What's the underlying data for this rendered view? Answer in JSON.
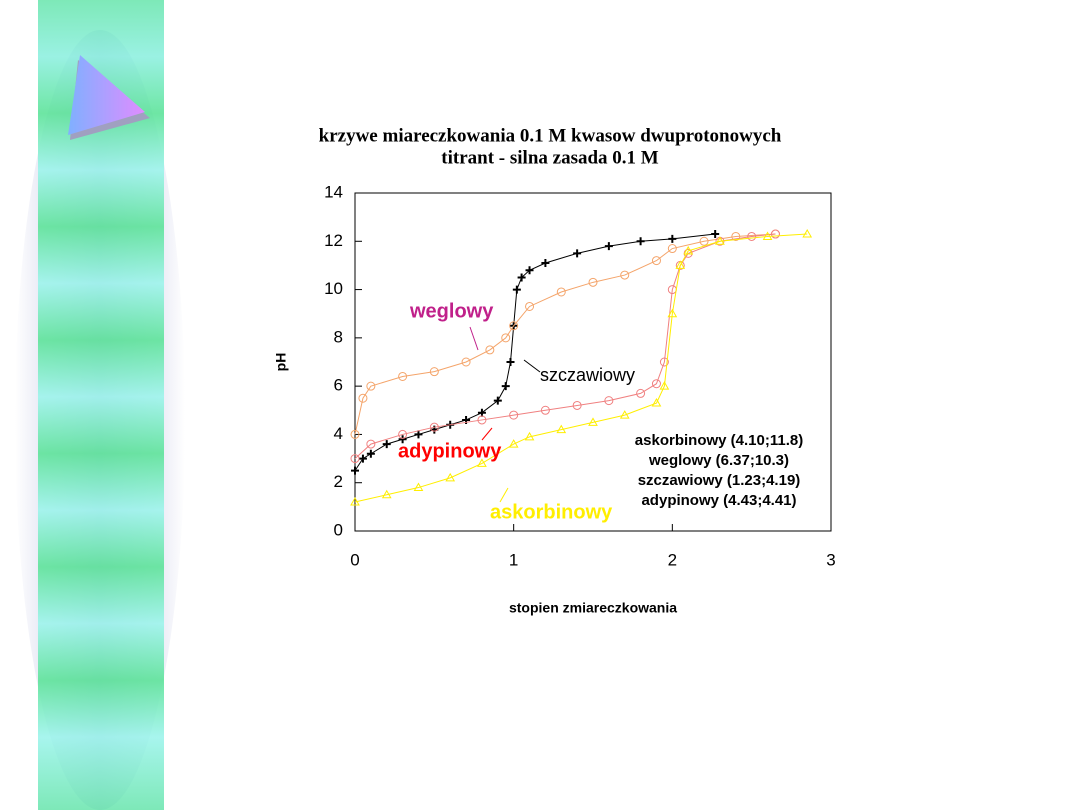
{
  "chart_data": {
    "type": "line",
    "title": "krzywe miareczkowania 0.1 M kwasow dwuprotonowych",
    "subtitle": "titrant - silna zasada 0.1 M",
    "x_label": "stopien zmiareczkowania",
    "y_label": "pH",
    "xlim": [
      0,
      3
    ],
    "xticks": [
      0,
      1,
      2,
      3
    ],
    "ylim": [
      0,
      14
    ],
    "yticks": [
      0,
      2,
      4,
      6,
      8,
      10,
      12,
      14
    ],
    "series": [
      {
        "name": "szczawiowy",
        "color": "#000000",
        "marker": "plus",
        "x": [
          0,
          0.05,
          0.1,
          0.2,
          0.3,
          0.4,
          0.5,
          0.6,
          0.7,
          0.8,
          0.9,
          0.95,
          0.98,
          1.0,
          1.02,
          1.05,
          1.1,
          1.2,
          1.4,
          1.6,
          1.8,
          2.0,
          2.27
        ],
        "values": [
          2.5,
          3.0,
          3.2,
          3.6,
          3.8,
          4.0,
          4.2,
          4.4,
          4.6,
          4.9,
          5.4,
          6.0,
          7.0,
          8.5,
          10.0,
          10.5,
          10.8,
          11.1,
          11.5,
          11.8,
          12.0,
          12.1,
          12.3
        ]
      },
      {
        "name": "weglowy",
        "color": "#f4a46a",
        "marker": "circle",
        "x": [
          0,
          0.05,
          0.1,
          0.3,
          0.5,
          0.7,
          0.85,
          0.95,
          1.0,
          1.1,
          1.3,
          1.5,
          1.7,
          1.9,
          2.0,
          2.2,
          2.4,
          2.65
        ],
        "values": [
          4.0,
          5.5,
          6.0,
          6.4,
          6.6,
          7.0,
          7.5,
          8.0,
          8.5,
          9.3,
          9.9,
          10.3,
          10.6,
          11.2,
          11.7,
          12.0,
          12.2,
          12.3
        ]
      },
      {
        "name": "adypinowy",
        "color": "#f08080",
        "marker": "circle",
        "x": [
          0,
          0.1,
          0.3,
          0.5,
          0.8,
          1.0,
          1.2,
          1.4,
          1.6,
          1.8,
          1.9,
          1.95,
          2.0,
          2.05,
          2.1,
          2.3,
          2.5,
          2.65
        ],
        "values": [
          3.0,
          3.6,
          4.0,
          4.3,
          4.6,
          4.8,
          5.0,
          5.2,
          5.4,
          5.7,
          6.1,
          7.0,
          10.0,
          11.0,
          11.5,
          12.0,
          12.2,
          12.3
        ]
      },
      {
        "name": "askorbinowy",
        "color": "#ffee00",
        "marker": "triangle",
        "x": [
          0,
          0.2,
          0.4,
          0.6,
          0.8,
          1.0,
          1.1,
          1.3,
          1.5,
          1.7,
          1.9,
          1.95,
          2.0,
          2.05,
          2.1,
          2.3,
          2.6,
          2.85
        ],
        "values": [
          1.2,
          1.5,
          1.8,
          2.2,
          2.8,
          3.6,
          3.9,
          4.2,
          4.5,
          4.8,
          5.3,
          6.0,
          9.0,
          11.0,
          11.6,
          12.0,
          12.2,
          12.3
        ]
      }
    ],
    "annotations": [
      {
        "text": "weglowy",
        "color": "#c0208a"
      },
      {
        "text": "szczawiowy",
        "color": "#000000"
      },
      {
        "text": "adypinowy",
        "color": "#ff0000"
      },
      {
        "text": "askorbinowy",
        "color": "#ffee00"
      }
    ],
    "legend_lines": [
      "askorbinowy (4.10;11.8)",
      "weglowy (6.37;10.3)",
      "szczawiowy (1.23;4.19)",
      "adypinowy (4.43;4.41)"
    ]
  }
}
